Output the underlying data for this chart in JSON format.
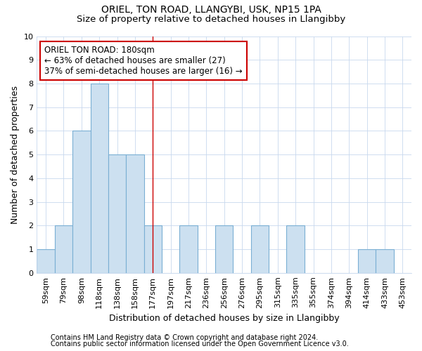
{
  "title_line1": "ORIEL, TON ROAD, LLANGYBI, USK, NP15 1PA",
  "title_line2": "Size of property relative to detached houses in Llangibby",
  "xlabel": "Distribution of detached houses by size in Llangibby",
  "ylabel": "Number of detached properties",
  "categories": [
    "59sqm",
    "79sqm",
    "98sqm",
    "118sqm",
    "138sqm",
    "158sqm",
    "177sqm",
    "197sqm",
    "217sqm",
    "236sqm",
    "256sqm",
    "276sqm",
    "295sqm",
    "315sqm",
    "335sqm",
    "355sqm",
    "374sqm",
    "394sqm",
    "414sqm",
    "433sqm",
    "453sqm"
  ],
  "values": [
    1,
    2,
    6,
    8,
    5,
    5,
    2,
    0,
    2,
    0,
    2,
    0,
    2,
    0,
    2,
    0,
    0,
    0,
    1,
    1,
    0
  ],
  "bar_color": "#cce0f0",
  "bar_edge_color": "#7aafd4",
  "grid_color": "#c8d8ee",
  "background_color": "#ffffff",
  "plot_bg_color": "#ffffff",
  "vline_x_index": 6,
  "vline_color": "#cc0000",
  "annotation_text": "ORIEL TON ROAD: 180sqm\n← 63% of detached houses are smaller (27)\n37% of semi-detached houses are larger (16) →",
  "annotation_box_color": "#ffffff",
  "annotation_box_edge_color": "#cc0000",
  "ylim": [
    0,
    10
  ],
  "yticks": [
    0,
    1,
    2,
    3,
    4,
    5,
    6,
    7,
    8,
    9,
    10
  ],
  "footer_line1": "Contains HM Land Registry data © Crown copyright and database right 2024.",
  "footer_line2": "Contains public sector information licensed under the Open Government Licence v3.0.",
  "title_fontsize": 10,
  "subtitle_fontsize": 9.5,
  "axis_label_fontsize": 9,
  "tick_fontsize": 8,
  "annotation_fontsize": 8.5,
  "footer_fontsize": 7
}
